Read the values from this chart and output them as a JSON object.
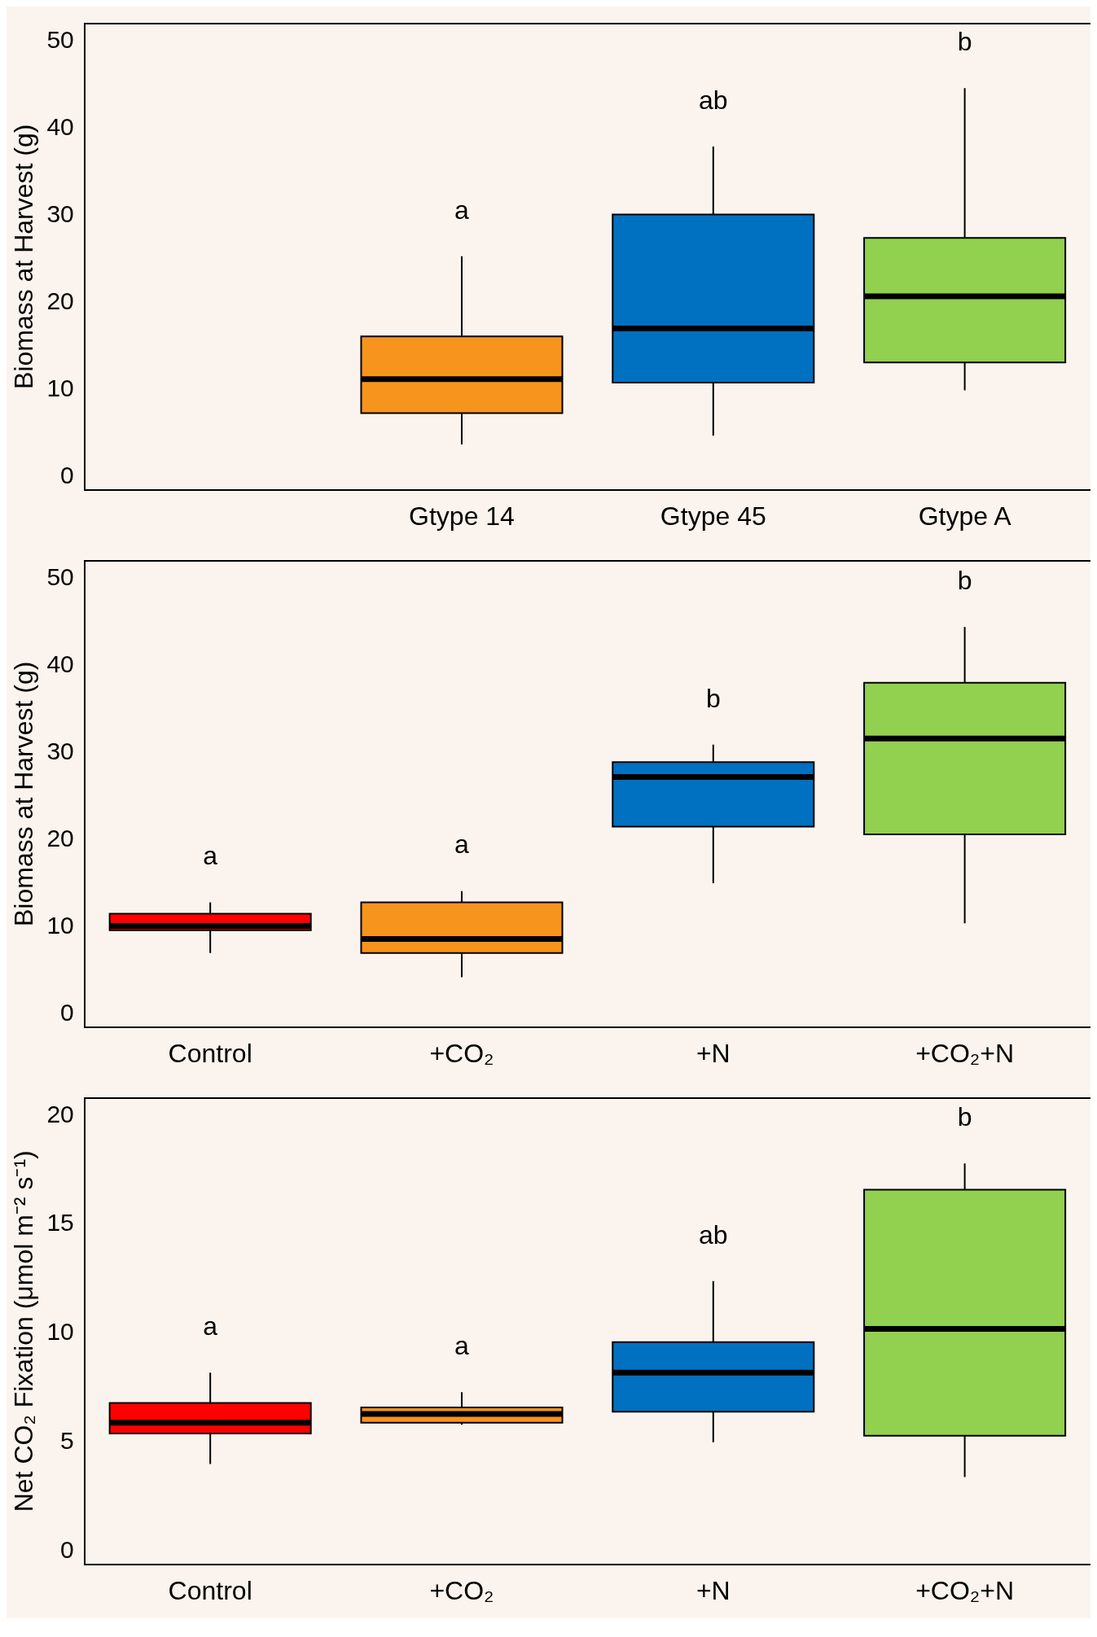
{
  "chart_data": [
    {
      "type": "box",
      "ylabel": "Biomass at Harvest (g)",
      "categories": [
        null,
        "Gtype 14",
        "Gtype 45",
        "Gtype A"
      ],
      "colors": [
        null,
        "#f7941d",
        "#0070c0",
        "#92d050"
      ],
      "ylim": [
        -1.5,
        52
      ],
      "yticks": [
        0,
        10,
        20,
        30,
        40,
        50
      ],
      "boxes": [
        null,
        {
          "low": 3.7,
          "q1": 7.3,
          "median": 11.2,
          "q3": 16.1,
          "high": 25.3
        },
        {
          "low": 4.7,
          "q1": 10.8,
          "median": 17.0,
          "q3": 30.1,
          "high": 37.9
        },
        {
          "low": 9.9,
          "q1": 13.1,
          "median": 20.7,
          "q3": 27.4,
          "high": 44.6
        }
      ],
      "annotations": [
        "a",
        "ab",
        "b"
      ]
    },
    {
      "type": "box",
      "ylabel": "Biomass at Harvest (g)",
      "categories": [
        "Control",
        "+CO₂",
        "+N",
        "+CO₂+N"
      ],
      "colors": [
        "#ff0000",
        "#f7941d",
        "#0070c0",
        "#92d050"
      ],
      "ylim": [
        -1.5,
        52
      ],
      "yticks": [
        0,
        10,
        20,
        30,
        40,
        50
      ],
      "boxes": [
        {
          "low": 7.0,
          "q1": 9.6,
          "median": 10.1,
          "q3": 11.5,
          "high": 12.8
        },
        {
          "low": 4.2,
          "q1": 7.0,
          "median": 8.6,
          "q3": 12.8,
          "high": 14.1
        },
        {
          "low": 15.0,
          "q1": 21.5,
          "median": 27.2,
          "q3": 28.9,
          "high": 30.9
        },
        {
          "low": 10.4,
          "q1": 20.6,
          "median": 31.6,
          "q3": 38.0,
          "high": 44.4
        }
      ],
      "annotations": [
        "a",
        "a",
        "b",
        "b"
      ]
    },
    {
      "type": "box",
      "ylabel": "Net CO₂ Fixation (μmol m⁻² s⁻¹)",
      "categories": [
        "Control",
        "+CO₂",
        "+N",
        "+CO₂+N"
      ],
      "colors": [
        "#ff0000",
        "#f7941d",
        "#0070c0",
        "#92d050"
      ],
      "ylim": [
        -0.6,
        20.8
      ],
      "yticks": [
        0,
        5,
        10,
        15,
        20
      ],
      "boxes": [
        {
          "low": 4.0,
          "q1": 5.4,
          "median": 5.9,
          "q3": 6.8,
          "high": 8.2
        },
        {
          "low": 5.8,
          "q1": 5.9,
          "median": 6.3,
          "q3": 6.6,
          "high": 7.3
        },
        {
          "low": 5.0,
          "q1": 6.4,
          "median": 8.2,
          "q3": 9.6,
          "high": 12.4
        },
        {
          "low": 3.4,
          "q1": 5.3,
          "median": 10.2,
          "q3": 16.6,
          "high": 17.8
        }
      ],
      "annotations": [
        "a",
        "a",
        "ab",
        "b"
      ]
    }
  ]
}
